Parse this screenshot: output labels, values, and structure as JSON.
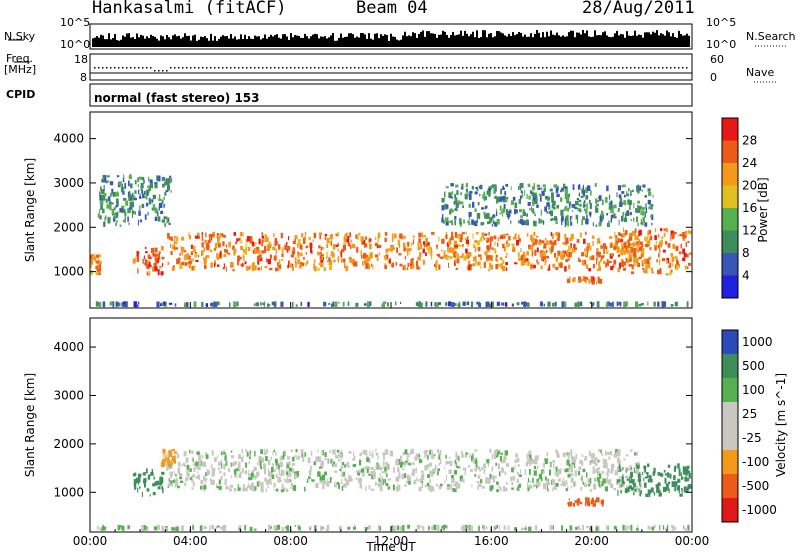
{
  "header": {
    "station": "Hankasalmi (fitACF)",
    "beam": "Beam 04",
    "date": "28/Aug/2011"
  },
  "noise_panel": {
    "left_label": "N.Sky",
    "right_label": "N.Search",
    "left_ticks": [
      "10^5",
      "10^0"
    ],
    "right_ticks": [
      "10^5",
      "10^0"
    ]
  },
  "freq_panel": {
    "left_label_1": "Freq.",
    "left_label_2": "[MHz]",
    "right_label": "Nave",
    "left_ticks": [
      "18",
      "8"
    ],
    "right_ticks": [
      "60",
      "0"
    ]
  },
  "cpid_panel": {
    "label": "CPID",
    "mode": "normal (fast stereo) 153"
  },
  "colors": {
    "power_scale": [
      "#2020e0",
      "#3a55b8",
      "#3d8e5a",
      "#56b050",
      "#e0c020",
      "#f39a1a",
      "#ee5a18",
      "#e81818"
    ],
    "velocity_scale": [
      "#e01818",
      "#ee5a18",
      "#f39a1a",
      "#c8c8c0",
      "#c8c8c0",
      "#56b050",
      "#3d8e5a",
      "#2a4ab8"
    ]
  },
  "chart_data": [
    {
      "type": "heatmap",
      "name": "power",
      "ylabel": "Slant Range [km]",
      "xlabel": "",
      "x_ticks": [
        "00:00",
        "04:00",
        "08:00",
        "12:00",
        "16:00",
        "20:00",
        "00:00"
      ],
      "xlim_hours": [
        0,
        24
      ],
      "y_ticks": [
        1000,
        2000,
        3000,
        4000
      ],
      "ylim": [
        180,
        4600
      ],
      "colorbar_label": "Power [dB]",
      "colorbar_ticks": [
        4,
        8,
        12,
        16,
        20,
        24,
        28
      ],
      "colorbar_range": [
        0,
        32
      ],
      "features": [
        {
          "start_h": 0.0,
          "end_h": 24.0,
          "range_km": [
            200,
            330
          ],
          "level": 8,
          "desc": "near range band"
        },
        {
          "start_h": 0.0,
          "end_h": 0.5,
          "range_km": [
            900,
            1400
          ],
          "level": 24
        },
        {
          "start_h": 1.7,
          "end_h": 3.0,
          "range_km": [
            900,
            1600
          ],
          "level": 26
        },
        {
          "start_h": 3.0,
          "end_h": 22.0,
          "range_km": [
            1000,
            1900
          ],
          "level": 24
        },
        {
          "start_h": 19.0,
          "end_h": 20.5,
          "range_km": [
            700,
            900
          ],
          "level": 24
        },
        {
          "start_h": 21.0,
          "end_h": 24.0,
          "range_km": [
            900,
            2000
          ],
          "level": 24
        },
        {
          "start_h": 0.3,
          "end_h": 3.3,
          "range_km": [
            2000,
            3200
          ],
          "level": 10
        },
        {
          "start_h": 14.0,
          "end_h": 22.5,
          "range_km": [
            2000,
            3000
          ],
          "level": 10
        }
      ]
    },
    {
      "type": "heatmap",
      "name": "velocity",
      "ylabel": "Slant Range [km]",
      "xlabel": "Time UT",
      "x_ticks": [
        "00:00",
        "04:00",
        "08:00",
        "12:00",
        "16:00",
        "20:00",
        "00:00"
      ],
      "xlim_hours": [
        0,
        24
      ],
      "y_ticks": [
        1000,
        2000,
        3000,
        4000
      ],
      "ylim": [
        180,
        4600
      ],
      "colorbar_label": "Velocity [m s^-1]",
      "colorbar_ticks": [
        -1000,
        -500,
        -100,
        -25,
        25,
        100,
        500,
        1000
      ],
      "features": [
        {
          "start_h": 0.0,
          "end_h": 24.0,
          "range_km": [
            200,
            330
          ],
          "velocity": 25,
          "desc": "ground scatter near range"
        },
        {
          "start_h": 1.7,
          "end_h": 3.0,
          "range_km": [
            900,
            1500
          ],
          "velocity": 400
        },
        {
          "start_h": 3.0,
          "end_h": 22.0,
          "range_km": [
            1000,
            1900
          ],
          "velocity": 0,
          "desc": "ground scatter"
        },
        {
          "start_h": 19.0,
          "end_h": 20.5,
          "range_km": [
            700,
            900
          ],
          "velocity": -600
        },
        {
          "start_h": 21.0,
          "end_h": 24.0,
          "range_km": [
            900,
            1600
          ],
          "velocity": 200
        },
        {
          "start_h": 2.8,
          "end_h": 3.5,
          "range_km": [
            1500,
            1900
          ],
          "velocity": -300
        }
      ]
    }
  ]
}
